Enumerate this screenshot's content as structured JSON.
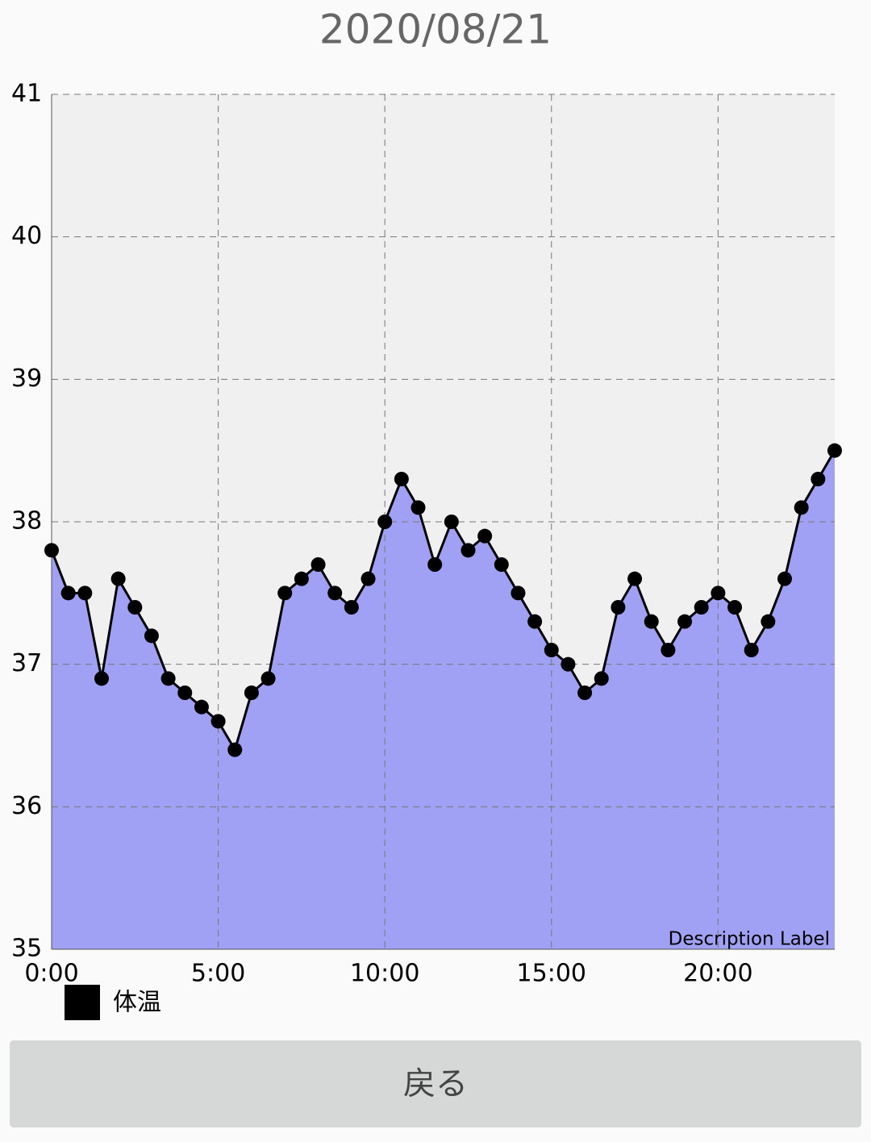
{
  "chart_data": {
    "type": "area",
    "title": "2020/08/21",
    "description": "Description Label",
    "x": [
      0,
      0.5,
      1,
      1.5,
      2,
      2.5,
      3,
      3.5,
      4,
      4.5,
      5,
      5.5,
      6,
      6.5,
      7,
      7.5,
      8,
      8.5,
      9,
      9.5,
      10,
      10.5,
      11,
      11.5,
      12,
      12.5,
      13,
      13.5,
      14,
      14.5,
      15,
      15.5,
      16,
      16.5,
      17,
      17.5,
      18,
      18.5,
      19,
      19.5,
      20,
      20.5,
      21,
      21.5,
      22,
      22.5,
      23,
      23.5
    ],
    "series": [
      {
        "name": "体温",
        "color": "#000000",
        "fill_color": "#a0a0f4",
        "values": [
          37.8,
          37.5,
          37.5,
          36.9,
          37.6,
          37.4,
          37.2,
          36.9,
          36.8,
          36.7,
          36.6,
          36.4,
          36.8,
          36.9,
          37.5,
          37.6,
          37.7,
          37.5,
          37.4,
          37.6,
          38.0,
          38.3,
          38.1,
          37.7,
          38.0,
          37.8,
          37.9,
          37.7,
          37.5,
          37.3,
          37.1,
          37.0,
          36.8,
          36.9,
          37.4,
          37.6,
          37.3,
          37.1,
          37.3,
          37.4,
          37.5,
          37.4,
          37.1,
          37.3,
          37.6,
          38.1,
          38.3,
          38.5
        ]
      }
    ],
    "xlim": [
      0,
      23.5
    ],
    "xticks": [
      {
        "value": 0,
        "label": "0:00"
      },
      {
        "value": 5,
        "label": "5:00"
      },
      {
        "value": 10,
        "label": "10:00"
      },
      {
        "value": 15,
        "label": "15:00"
      },
      {
        "value": 20,
        "label": "20:00"
      }
    ],
    "ylim": [
      35,
      41
    ],
    "yticks": [
      35,
      36,
      37,
      38,
      39,
      40,
      41
    ],
    "grid": true,
    "plot_background": "#f0f0f0"
  },
  "button": {
    "label": "戻る"
  }
}
